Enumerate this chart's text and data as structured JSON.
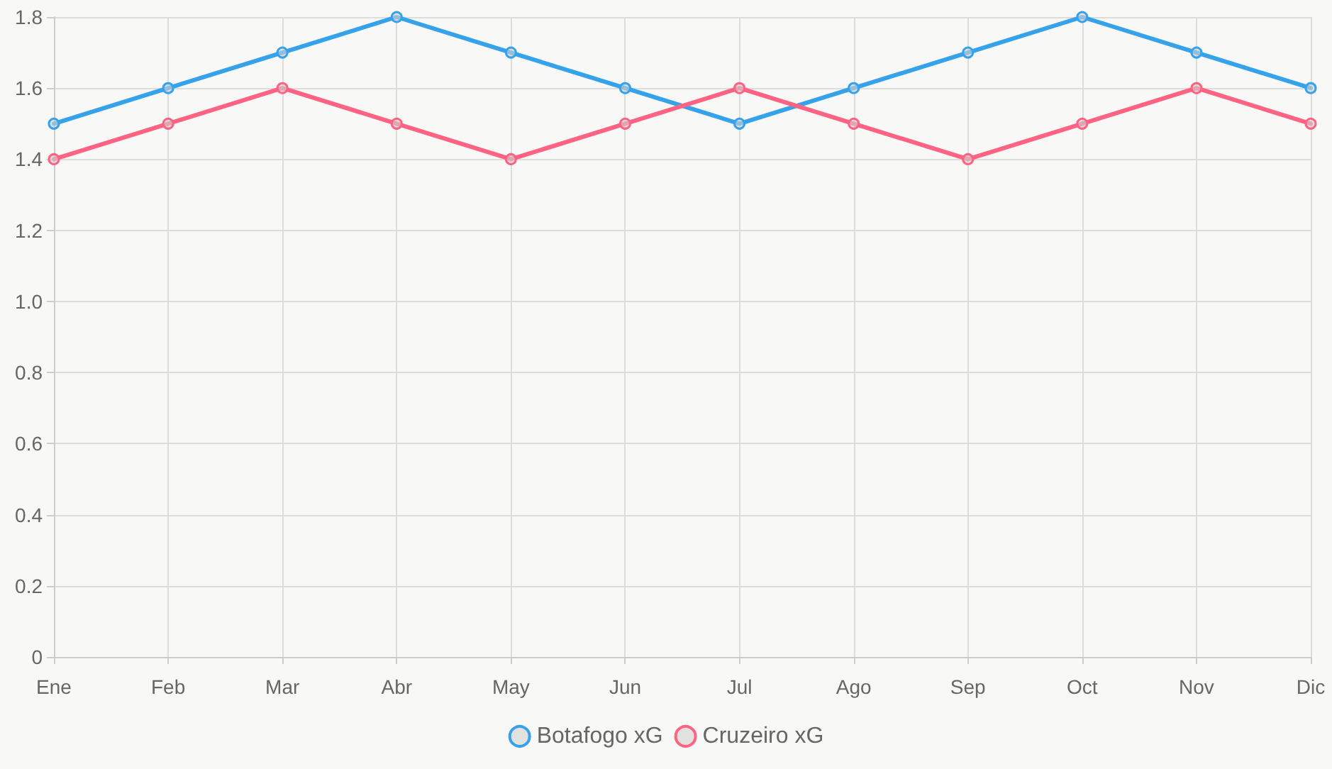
{
  "chart_data": {
    "type": "line",
    "categories": [
      "Ene",
      "Feb",
      "Mar",
      "Abr",
      "May",
      "Jun",
      "Jul",
      "Ago",
      "Sep",
      "Oct",
      "Nov",
      "Dic"
    ],
    "series": [
      {
        "name": "Botafogo xG",
        "color": "#36a2eb",
        "values": [
          1.5,
          1.6,
          1.7,
          1.8,
          1.7,
          1.6,
          1.5,
          1.6,
          1.7,
          1.8,
          1.7,
          1.6
        ]
      },
      {
        "name": "Cruzeiro xG",
        "color": "#ff6384",
        "values": [
          1.4,
          1.5,
          1.6,
          1.5,
          1.4,
          1.5,
          1.6,
          1.5,
          1.4,
          1.5,
          1.6,
          1.5
        ]
      }
    ],
    "ylim": [
      0,
      1.8
    ],
    "yticks": [
      0,
      0.2,
      0.4,
      0.6,
      0.8,
      {
        "value": 1,
        "label": "1.0"
      },
      1.2,
      1.4,
      1.6,
      1.8
    ],
    "grid": true,
    "legend": "bottom",
    "marker": "circle",
    "line_style": "solid"
  }
}
